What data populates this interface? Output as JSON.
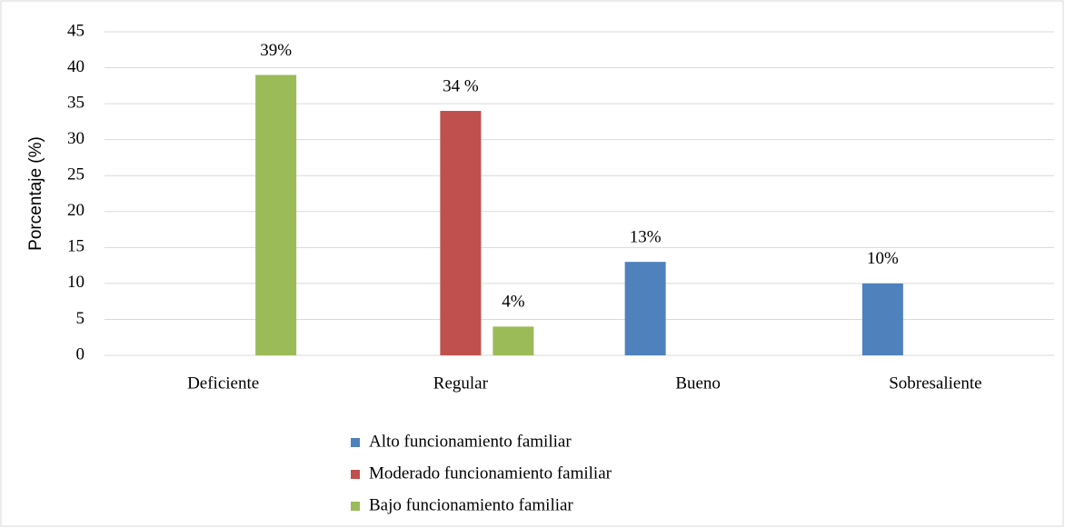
{
  "chart_data": {
    "type": "bar",
    "ylabel": "Porcentaje (%)",
    "categories": [
      "Deficiente",
      "Regular",
      "Bueno",
      "Sobresaliente"
    ],
    "series": [
      {
        "name": "Alto funcionamiento familiar",
        "color": "#4f81bd",
        "values": [
          null,
          null,
          13,
          10
        ],
        "value_labels": [
          null,
          null,
          "13%",
          "10%"
        ]
      },
      {
        "name": "Moderado funcionamiento familiar",
        "color": "#c0504d",
        "values": [
          null,
          34,
          null,
          null
        ],
        "value_labels": [
          null,
          "34 %",
          null,
          null
        ]
      },
      {
        "name": "Bajo funcionamiento familiar",
        "color": "#9bbb59",
        "values": [
          39,
          4,
          null,
          null
        ],
        "value_labels": [
          "39%",
          "4%",
          null,
          null
        ]
      }
    ],
    "ylim": [
      0,
      45
    ],
    "yticks": [
      0,
      5,
      10,
      15,
      20,
      25,
      30,
      35,
      40,
      45
    ],
    "grid": true,
    "legend": "bottom"
  }
}
